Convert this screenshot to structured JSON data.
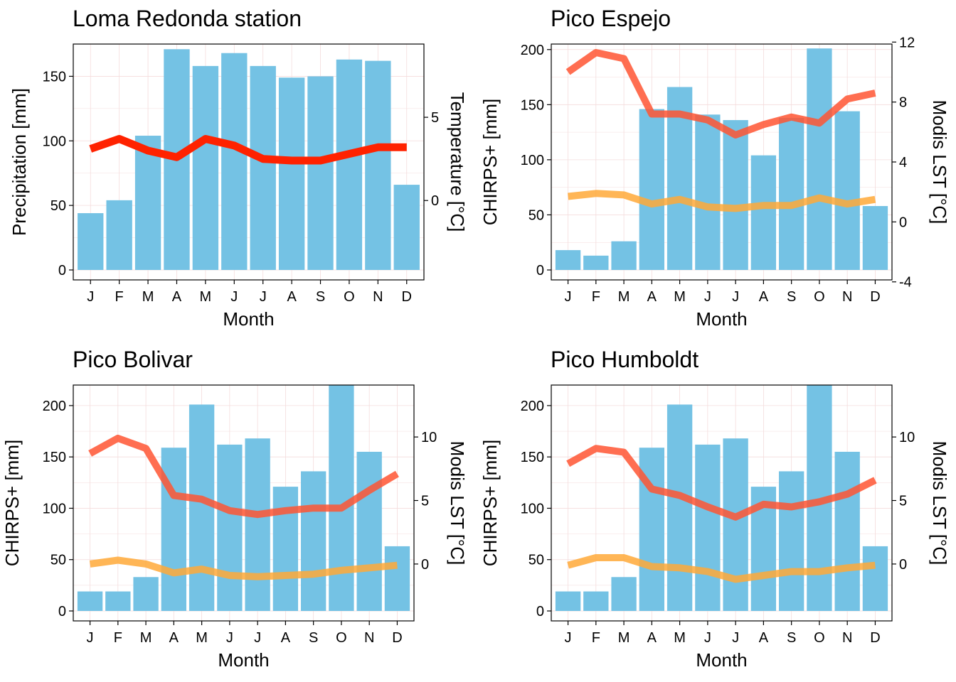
{
  "colors": {
    "bar": "#74C2E4",
    "lst_max": "#FF5533",
    "lst_min": "#FFA938",
    "station_temp": "#FF2200",
    "grid": "#F4DCDC"
  },
  "chart_data": [
    {
      "type": "bar",
      "title": "Loma Redonda station",
      "xlabel": "Month",
      "ylabel": "Precipitation [mm]",
      "y2label": "Temperature [°C]",
      "categories": [
        "J",
        "F",
        "M",
        "A",
        "M",
        "J",
        "J",
        "A",
        "S",
        "O",
        "N",
        "D"
      ],
      "ylim": [
        0,
        175
      ],
      "yticks": [
        0,
        50,
        100,
        150
      ],
      "y2lim": [
        -4.77,
        9.4
      ],
      "y2ticks": [
        0,
        5
      ],
      "grid": true,
      "series": [
        {
          "kind": "bar",
          "values": [
            44,
            54,
            104,
            171,
            158,
            168,
            158,
            149,
            150,
            163,
            162,
            66
          ]
        },
        {
          "kind": "line",
          "axis": "y2",
          "color": "#FF2200",
          "values": [
            3.1,
            3.7,
            3.0,
            2.6,
            3.7,
            3.3,
            2.5,
            2.4,
            2.4,
            2.8,
            3.2,
            3.2
          ]
        }
      ]
    },
    {
      "type": "bar",
      "title": "Pico Espejo",
      "xlabel": "Month",
      "ylabel": "CHIRPS+ [mm]",
      "y2label": "Modis LST [°C]",
      "categories": [
        "J",
        "F",
        "M",
        "A",
        "M",
        "J",
        "J",
        "A",
        "S",
        "O",
        "N",
        "D"
      ],
      "ylim": [
        0,
        205
      ],
      "yticks": [
        0,
        50,
        100,
        150,
        200
      ],
      "y2lim": [
        -3.87,
        11.87
      ],
      "y2ticks": [
        -4,
        0,
        4,
        8,
        12
      ],
      "grid": true,
      "series": [
        {
          "kind": "bar",
          "values": [
            18,
            13,
            26,
            146,
            166,
            141,
            136,
            104,
            138,
            201,
            144,
            58
          ]
        },
        {
          "kind": "line",
          "axis": "y2",
          "color": "#FF5533",
          "values": [
            10.0,
            11.3,
            10.9,
            7.2,
            7.2,
            6.8,
            5.8,
            6.5,
            7.0,
            6.6,
            8.2,
            8.6
          ]
        },
        {
          "kind": "line",
          "axis": "y2",
          "color": "#FFA938",
          "values": [
            1.7,
            1.9,
            1.8,
            1.2,
            1.5,
            1.0,
            0.9,
            1.1,
            1.1,
            1.6,
            1.2,
            1.5
          ]
        }
      ]
    },
    {
      "type": "bar",
      "title": "Pico Bolivar",
      "xlabel": "Month",
      "ylabel": "CHIRPS+ [mm]",
      "y2label": "Modis LST [°C]",
      "categories": [
        "J",
        "F",
        "M",
        "A",
        "M",
        "J",
        "J",
        "A",
        "S",
        "O",
        "N",
        "D"
      ],
      "ylim": [
        0,
        220
      ],
      "yticks": [
        0,
        50,
        100,
        150,
        200
      ],
      "y2lim": [
        -4.48,
        14.09
      ],
      "y2ticks": [
        0,
        5,
        10
      ],
      "grid": true,
      "series": [
        {
          "kind": "bar",
          "values": [
            19,
            19,
            33,
            159,
            201,
            162,
            168,
            121,
            136,
            220,
            155,
            63
          ]
        },
        {
          "kind": "line",
          "axis": "y2",
          "color": "#FF5533",
          "values": [
            8.7,
            9.9,
            9.1,
            5.4,
            5.1,
            4.2,
            3.9,
            4.2,
            4.4,
            4.4,
            5.8,
            7.1
          ]
        },
        {
          "kind": "line",
          "axis": "y2",
          "color": "#FFA938",
          "values": [
            0.0,
            0.3,
            0.0,
            -0.7,
            -0.4,
            -0.9,
            -1.0,
            -0.9,
            -0.8,
            -0.5,
            -0.3,
            -0.1
          ]
        }
      ]
    },
    {
      "type": "bar",
      "title": "Pico Humboldt",
      "xlabel": "Month",
      "ylabel": "CHIRPS+ [mm]",
      "y2label": "Modis LST [°C]",
      "categories": [
        "J",
        "F",
        "M",
        "A",
        "M",
        "J",
        "J",
        "A",
        "S",
        "O",
        "N",
        "D"
      ],
      "ylim": [
        0,
        220
      ],
      "yticks": [
        0,
        50,
        100,
        150,
        200
      ],
      "y2lim": [
        -4.48,
        14.09
      ],
      "y2ticks": [
        0,
        5,
        10
      ],
      "grid": true,
      "series": [
        {
          "kind": "bar",
          "values": [
            19,
            19,
            33,
            159,
            201,
            162,
            168,
            121,
            136,
            220,
            155,
            63
          ]
        },
        {
          "kind": "line",
          "axis": "y2",
          "color": "#FF5533",
          "values": [
            7.9,
            9.1,
            8.8,
            5.9,
            5.4,
            4.5,
            3.7,
            4.7,
            4.5,
            4.9,
            5.5,
            6.6
          ]
        },
        {
          "kind": "line",
          "axis": "y2",
          "color": "#FFA938",
          "values": [
            -0.1,
            0.5,
            0.5,
            -0.2,
            -0.3,
            -0.6,
            -1.2,
            -0.9,
            -0.6,
            -0.6,
            -0.3,
            -0.1
          ]
        }
      ]
    }
  ]
}
